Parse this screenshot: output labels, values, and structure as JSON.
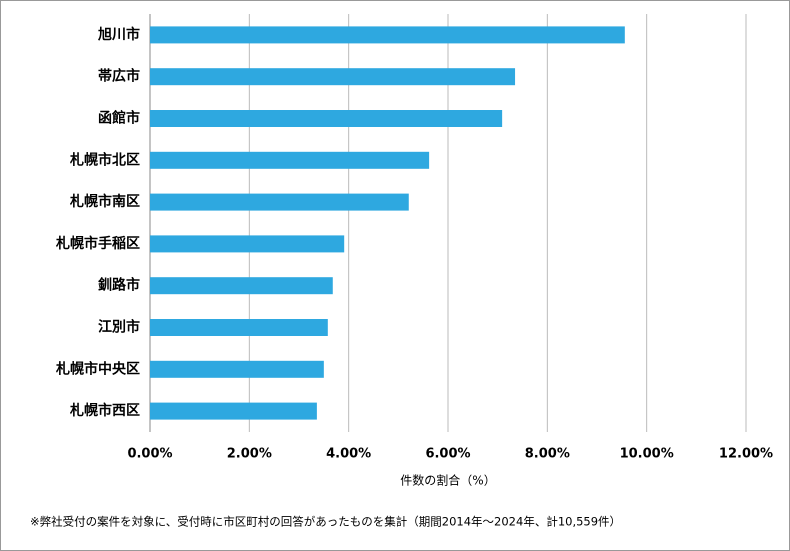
{
  "chart_data": {
    "type": "hbar",
    "categories": [
      "旭川市",
      "帯広市",
      "函館市",
      "札幌市北区",
      "札幌市南区",
      "札幌市手稲区",
      "釧路市",
      "江別市",
      "札幌市中央区",
      "札幌市西区"
    ],
    "values": [
      9.56,
      7.35,
      7.09,
      5.62,
      5.21,
      3.91,
      3.68,
      3.58,
      3.5,
      3.36
    ],
    "color": "#2ea8e0",
    "xlim": [
      0,
      12
    ],
    "xticks": [
      {
        "value": 0,
        "label": "0.00%"
      },
      {
        "value": 2,
        "label": "2.00%"
      },
      {
        "value": 4,
        "label": "4.00%"
      },
      {
        "value": 6,
        "label": "6.00%"
      },
      {
        "value": 8,
        "label": "8.00%"
      },
      {
        "value": 10,
        "label": "10.00%"
      },
      {
        "value": 12,
        "label": "12.00%"
      }
    ],
    "grid": true,
    "x_label": "件数の割合（%）",
    "footnote": "※弊社受付の案件を対象に、受付時に市区町村の回答があったものを集計（期間2014年～2024年、計10,559件）"
  }
}
